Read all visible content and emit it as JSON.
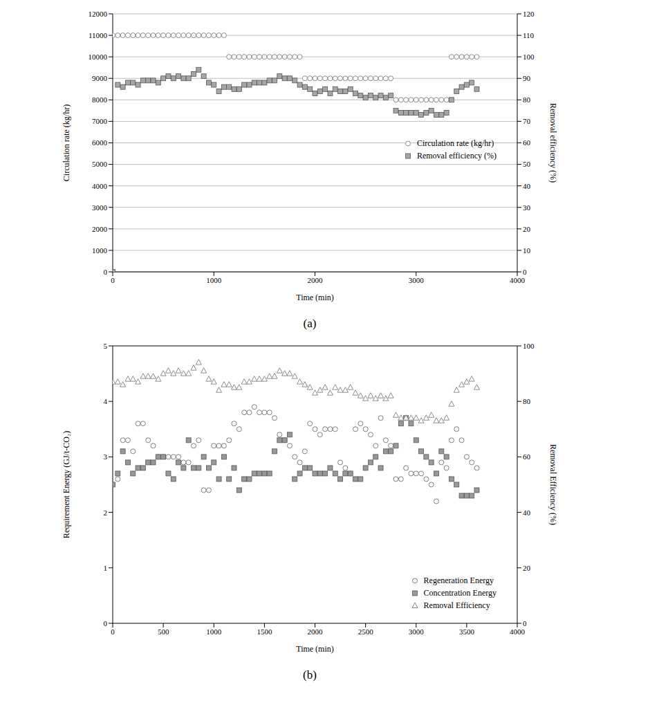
{
  "chart_data": [
    {
      "type": "scatter",
      "title": "(a)",
      "x_label": "Time (min)",
      "y_label": "Circulation rate (kg/hr)",
      "y2_label": "Removal efficiency (%)",
      "xlim": [
        0,
        4000
      ],
      "xticks": [
        0,
        1000,
        2000,
        3000,
        4000
      ],
      "ylim": [
        0,
        12000
      ],
      "yticks": [
        0,
        1000,
        2000,
        3000,
        4000,
        5000,
        6000,
        7000,
        8000,
        9000,
        10000,
        11000,
        12000
      ],
      "y2lim": [
        0,
        120
      ],
      "y2ticks": [
        0,
        10,
        20,
        30,
        40,
        50,
        60,
        70,
        80,
        90,
        100,
        110,
        120
      ],
      "grid": true,
      "legend": "right",
      "x": [
        0,
        50,
        100,
        150,
        200,
        250,
        300,
        350,
        400,
        450,
        500,
        550,
        600,
        650,
        700,
        750,
        800,
        850,
        900,
        950,
        1000,
        1050,
        1100,
        1150,
        1200,
        1250,
        1300,
        1350,
        1400,
        1450,
        1500,
        1550,
        1600,
        1650,
        1700,
        1750,
        1800,
        1850,
        1900,
        1950,
        2000,
        2050,
        2100,
        2150,
        2200,
        2250,
        2300,
        2350,
        2400,
        2450,
        2500,
        2550,
        2600,
        2650,
        2700,
        2750,
        2800,
        2850,
        2900,
        2950,
        3000,
        3050,
        3100,
        3150,
        3200,
        3250,
        3300,
        3350,
        3400,
        3450,
        3500,
        3550,
        3600
      ],
      "series": [
        {
          "name": "Circulation rate (kg/hr)",
          "color": "#8c8c8c",
          "marker": "circle",
          "values": [
            11000,
            11000,
            11000,
            11000,
            11000,
            11000,
            11000,
            11000,
            11000,
            11000,
            11000,
            11000,
            11000,
            11000,
            11000,
            11000,
            11000,
            11000,
            11000,
            11000,
            11000,
            11000,
            11000,
            10000,
            10000,
            10000,
            10000,
            10000,
            10000,
            10000,
            10000,
            10000,
            10000,
            10000,
            10000,
            10000,
            10000,
            10000,
            9000,
            9000,
            9000,
            9000,
            9000,
            9000,
            9000,
            9000,
            9000,
            9000,
            9000,
            9000,
            9000,
            9000,
            9000,
            9000,
            9000,
            9000,
            8000,
            8000,
            8000,
            8000,
            8000,
            8000,
            8000,
            8000,
            8000,
            8000,
            8000,
            10000,
            10000,
            10000,
            10000,
            10000,
            10000
          ]
        },
        {
          "name": "Removal efficiency (%)",
          "color": "#a6a6a6",
          "marker": "square",
          "axis": "y2",
          "values": [
            0,
            87,
            86,
            88,
            88,
            87,
            89,
            89,
            89,
            88,
            90,
            91,
            90,
            91,
            90,
            90,
            92,
            94,
            91,
            88,
            87,
            84,
            86,
            86,
            85,
            85,
            87,
            87,
            88,
            88,
            88,
            89,
            89,
            91,
            90,
            90,
            89,
            87,
            86,
            85,
            83,
            84,
            85,
            83,
            85,
            84,
            84,
            85,
            83,
            82,
            81,
            82,
            81,
            82,
            81,
            82,
            75,
            74,
            74,
            74,
            74,
            73,
            74,
            75,
            73,
            73,
            74,
            80,
            84,
            86,
            87,
            88,
            85
          ]
        }
      ]
    },
    {
      "type": "scatter",
      "title": "(b)",
      "x_label": "Time (min)",
      "y_label": "Requirement Energy (GJ/t-CO₂)",
      "y2_label": "Removal Efficiency (%)",
      "xlim": [
        0,
        4000
      ],
      "xticks": [
        0,
        500,
        1000,
        1500,
        2000,
        2500,
        3000,
        3500,
        4000
      ],
      "ylim": [
        0,
        5
      ],
      "yticks": [
        0,
        1,
        2,
        3,
        4,
        5
      ],
      "y2lim": [
        0,
        100
      ],
      "y2ticks": [
        0,
        20,
        40,
        60,
        80,
        100
      ],
      "grid": false,
      "legend": "lower right",
      "x": [
        0,
        50,
        100,
        150,
        200,
        250,
        300,
        350,
        400,
        450,
        500,
        550,
        600,
        650,
        700,
        750,
        800,
        850,
        900,
        950,
        1000,
        1050,
        1100,
        1150,
        1200,
        1250,
        1300,
        1350,
        1400,
        1450,
        1500,
        1550,
        1600,
        1650,
        1700,
        1750,
        1800,
        1850,
        1900,
        1950,
        2000,
        2050,
        2100,
        2150,
        2200,
        2250,
        2300,
        2350,
        2400,
        2450,
        2500,
        2550,
        2600,
        2650,
        2700,
        2750,
        2800,
        2850,
        2900,
        2950,
        3000,
        3050,
        3100,
        3150,
        3200,
        3250,
        3300,
        3350,
        3400,
        3450,
        3500,
        3550,
        3600
      ],
      "series": [
        {
          "name": "Regeneration Energy",
          "color": "#808080",
          "marker": "circle",
          "values": [
            2.5,
            2.6,
            3.3,
            3.3,
            3.1,
            3.6,
            3.6,
            3.3,
            3.2,
            3.0,
            3.0,
            3.0,
            3.0,
            3.0,
            2.9,
            2.9,
            3.2,
            3.3,
            2.4,
            2.4,
            3.2,
            3.2,
            3.2,
            3.3,
            3.6,
            3.5,
            3.8,
            3.8,
            3.9,
            3.8,
            3.8,
            3.8,
            3.7,
            3.4,
            3.3,
            3.2,
            3.0,
            2.9,
            3.1,
            3.6,
            3.5,
            3.4,
            3.5,
            3.5,
            3.5,
            2.9,
            2.8,
            2.7,
            3.5,
            3.6,
            3.5,
            3.4,
            3.2,
            3.7,
            3.3,
            3.2,
            2.6,
            2.6,
            2.8,
            2.7,
            2.7,
            2.7,
            2.6,
            2.5,
            2.2,
            2.9,
            2.8,
            3.3,
            3.5,
            3.3,
            3.0,
            2.9,
            2.8
          ]
        },
        {
          "name": "Concentration Energy",
          "color": "#999999",
          "marker": "square",
          "values": [
            2.5,
            2.7,
            3.1,
            2.9,
            2.7,
            2.8,
            2.8,
            2.9,
            2.9,
            3.0,
            3.0,
            2.7,
            2.6,
            2.9,
            2.8,
            3.3,
            2.8,
            2.8,
            3.0,
            2.8,
            2.9,
            2.6,
            3.0,
            2.6,
            2.8,
            2.4,
            2.6,
            2.6,
            2.7,
            2.7,
            2.7,
            2.7,
            3.1,
            3.3,
            3.3,
            3.4,
            2.6,
            2.7,
            2.8,
            2.8,
            2.7,
            2.7,
            2.7,
            2.8,
            2.7,
            2.6,
            2.7,
            2.7,
            2.6,
            2.6,
            2.8,
            2.9,
            3.0,
            2.8,
            3.1,
            3.1,
            3.2,
            3.6,
            3.7,
            3.6,
            3.3,
            3.1,
            3.0,
            2.9,
            2.7,
            3.1,
            3.0,
            2.6,
            2.5,
            2.3,
            2.3,
            2.3,
            2.4
          ]
        },
        {
          "name": "Removal Efficiency",
          "color": "#8c8c8c",
          "marker": "triangle",
          "axis": "y2",
          "values": [
            87,
            87,
            86,
            88,
            88,
            87,
            89,
            89,
            89,
            88,
            90,
            91,
            90,
            91,
            90,
            90,
            92,
            94,
            91,
            88,
            87,
            84,
            86,
            86,
            85,
            85,
            87,
            87,
            88,
            88,
            88,
            89,
            89,
            91,
            90,
            90,
            89,
            87,
            86,
            85,
            83,
            84,
            85,
            83,
            85,
            84,
            84,
            85,
            83,
            82,
            81,
            82,
            81,
            82,
            81,
            82,
            75,
            74,
            74,
            74,
            74,
            73,
            74,
            75,
            73,
            73,
            74,
            79,
            84,
            86,
            87,
            88,
            85
          ]
        }
      ]
    }
  ]
}
